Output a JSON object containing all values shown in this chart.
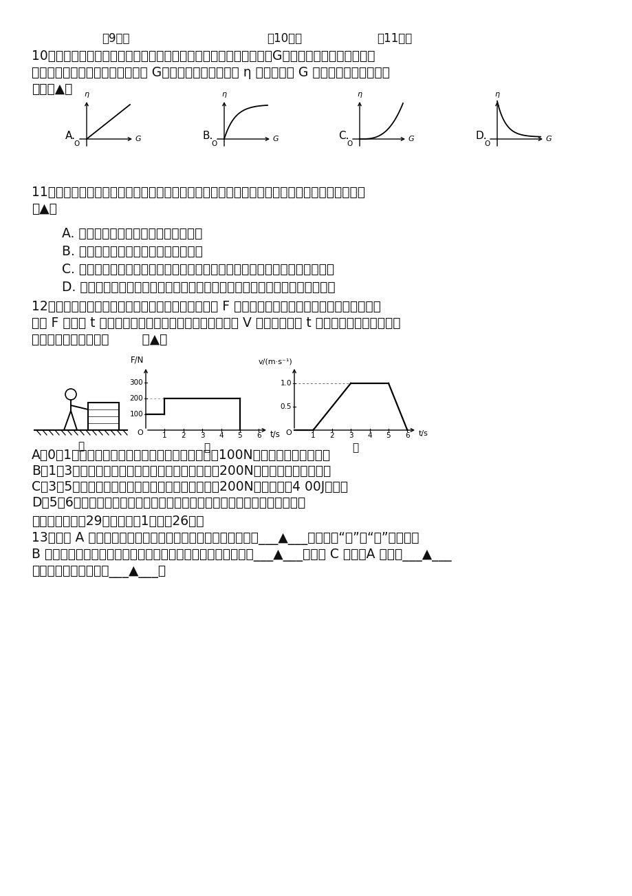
{
  "background_color": "#ffffff",
  "header_9": "第9题图",
  "header_10": "第10题图",
  "header_11": "第11题图",
  "q10_line1": "10、如图所示，用手沿竖直方向匀速拉一个动滑轮，使挂在下面重为G的物体缓慢上升，动滑轮的",
  "q10_line2": "重力不可忽略，现改变物体的重力 G，则动滑轮的机械效率 η 与物体重力 G 的关系可能符合下列图",
  "q10_line3": "中的（▲）",
  "q11_line1": "11、如图所示，小明将梨子和苹果分别放在轻杆的两侧，轻杆顺时针转起来，下列说法正确的是",
  "q11_line2": "（▲）",
  "q11_A": "A. 可以确定苹果的质量大于梨子的质量",
  "q11_B": "B. 可以确定苹果的质量等于梨子的质量",
  "q11_C": "C. 将苹果和梨子的位置对调，若杆逆时针转动就能比较苹果和梨子的质量大小",
  "q11_D": "D. 将苹果和梨子的位置对调，若杆顺时针转动就能比较苹果和梨子的质量大小",
  "q12_line1": "12、在水平地面上有一长方体木笱，小林用水平推力 F 把木笱向前推动，如图甲所示，此过程中，",
  "q12_line2": "推力 F 随时间 t 的变化情况如图乙所示，木块前进的速度 V 的大小随时间 t 的变化情况如图丙所示，",
  "q12_line3": "则下列说法中错误的是        （▲）",
  "q12_A": "A、0～1秒内，木笱静止不动，受到的摩擦力大小为100N，推力不对笱子做功；",
  "q12_B": "B、1～3秒内，木笱加速运动，受到的摩擦力大小为200N，推力对笱子做了功；",
  "q12_C": "C、3～5秒内，木笱匀速运动，受到的摩擦力大小为200N，推力做了4 00J的功；",
  "q12_D": "D、5～6秒内，木笱减速运动，受到的摩擦力越来越大，推力不对笱子做功；",
  "section2": "二、填空题（共29小题，每空1分，共26分）",
  "q13_line1": "13、如图 A 所示的两种剪刀，正常使用时为了省距离，应使用___▲___剪刀（填“甲”或“乙”）；如图",
  "q13_line2": "B 所示，工程车上的起重臂就是一个杆杆，使用它的好处是能省___▲___；如图 C 所示，A 装置是___▲___",
  "q13_line3": "滑轮，它的实质是一个___▲___。"
}
